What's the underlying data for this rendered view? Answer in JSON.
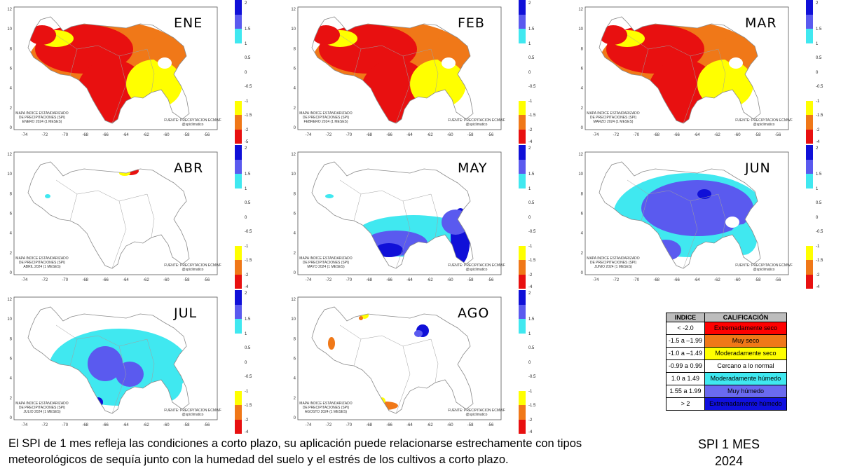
{
  "x_ticks": [
    "-74",
    "-72",
    "-70",
    "-68",
    "-66",
    "-64",
    "-62",
    "-60",
    "-58",
    "-56"
  ],
  "y_ticks": [
    "12",
    "10",
    "8",
    "6",
    "4",
    "2",
    "0"
  ],
  "panels": [
    {
      "month": "ENE",
      "title": [
        "MAPA INDICE ESTANDARIZADO",
        "DE PRECIPITACIONES (SPI)",
        "ENERO 2024 (1 MESES)"
      ],
      "source": [
        "FUENTE: PRECIPITACION ECMWF",
        "@spiclimatico"
      ],
      "cbar_ticks": [
        "2",
        "1.5",
        "1",
        "0.5",
        "0",
        "-0.5",
        "-1",
        "-1.5",
        "-2",
        "-5"
      ],
      "palette": "dry"
    },
    {
      "month": "FEB",
      "title": [
        "MAPA INDICE ESTANDARIZADO",
        "DE PRECIPITACIONES (SPI)",
        "FEBRERO 2024 (1 MESES)"
      ],
      "source": [
        "FUENTE: PRECIPITACION ECMWF",
        "@spiclimatico"
      ],
      "cbar_ticks": [
        "2",
        "1.5",
        "1",
        "0.5",
        "0",
        "-0.5",
        "-1",
        "-1.5",
        "-2",
        "-4"
      ],
      "palette": "dry"
    },
    {
      "month": "MAR",
      "title": [
        "MAPA INDICE ESTANDARIZADO",
        "DE PRECIPITACIONES (SPI)",
        "MARZO 2024 (1 MESES)"
      ],
      "source": [
        "FUENTE: PRECIPITACION ECMWF",
        "@spiclimatico"
      ],
      "cbar_ticks": [
        "2",
        "1.5",
        "1",
        "0.5",
        "0",
        "-0.5",
        "-1",
        "-1.5",
        "-2",
        "-4"
      ],
      "palette": "dry"
    },
    {
      "month": "ABR",
      "title": [
        "MAPA INDICE ESTANDARIZADO",
        "DE PRECIPITACIONES (SPI)",
        "ABRIL 2024 (1 MESES)"
      ],
      "source": [
        "FUENTE: PRECIPITACION ECMWF",
        "@spiclimatico"
      ],
      "cbar_ticks": [
        "2",
        "1.5",
        "1",
        "0.5",
        "0",
        "-0.5",
        "-1",
        "-1.5",
        "-2",
        "-4"
      ],
      "palette": "normal"
    },
    {
      "month": "MAY",
      "title": [
        "MAPA INDICE ESTANDARIZADO",
        "DE PRECIPITACIONES (SPI)",
        "MAYO 2024 (1 MESES)"
      ],
      "source": [
        "FUENTE: PRECIPITACION ECMWF",
        "@spiclimatico"
      ],
      "cbar_ticks": [
        "2",
        "1.5",
        "1",
        "0.5",
        "0",
        "-0.5",
        "-1",
        "-1.5",
        "-2",
        "-4"
      ],
      "palette": "wet-south"
    },
    {
      "month": "JUN",
      "title": [
        "MAPA INDICE ESTANDARIZADO",
        "DE PRECIPITACIONES (SPI)",
        "JUNIO 2024 (1 MESES)"
      ],
      "source": [
        "FUENTE: PRECIPITACION ECMWF",
        "@spiclimatico"
      ],
      "cbar_ticks": [
        "2",
        "1.5",
        "1",
        "0.5",
        "0",
        "-0.5",
        "-1",
        "-1.5",
        "-2",
        "-4"
      ],
      "palette": "wet"
    },
    {
      "month": "JUL",
      "title": [
        "MAPA INDICE ESTANDARIZADO",
        "DE PRECIPITACIONES (SPI)",
        "JULIO 2024 (1 MESES)"
      ],
      "source": [
        "FUENTE: PRECIPITACION ECMWF",
        "@spiclimatico"
      ],
      "cbar_ticks": [
        "2",
        "1.5",
        "1",
        "0.5",
        "0",
        "-0.5",
        "-1",
        "-1.5",
        "-2",
        "-4"
      ],
      "palette": "wet-light"
    },
    {
      "month": "AGO",
      "title": [
        "MAPA INDICE ESTANDARIZADO",
        "DE PRECIPITACIONES (SPI)",
        "AGOSTO 2024 (1 MESES)"
      ],
      "source": [
        "FUENTE: PRECIPITACION ECMWF",
        "@spiclimatico"
      ],
      "cbar_ticks": [
        "2",
        "1.5",
        "1",
        "0.5",
        "0",
        "-0.5",
        "-1",
        "-1.5",
        "-2",
        "-4"
      ],
      "palette": "normal-spots"
    }
  ],
  "colors": {
    "extreme_wet": "#1010d8",
    "very_wet": "#5a5aef",
    "mod_wet": "#40e8f0",
    "normal": "#ffffff",
    "mod_dry": "#ffff00",
    "very_dry": "#f07818",
    "extreme_dry": "#e81010"
  },
  "legend": {
    "header_index": "INDICE",
    "header_class": "CALIFICACIÓN",
    "rows": [
      {
        "index": "< -2.0",
        "label": "Extremadamente seco",
        "color": "#ff0000"
      },
      {
        "index": "-1.5 a –1.99",
        "label": "Muy seco",
        "color": "#f07818"
      },
      {
        "index": "-1.0 a –1.49",
        "label": "Moderadamente seco",
        "color": "#ffff00"
      },
      {
        "index": "-0.99 a 0.99",
        "label": "Cercano a lo normal",
        "color": "#ffffff"
      },
      {
        "index": "1.0 a 1.49",
        "label": "Moderadamente húmedo",
        "color": "#40e8f0"
      },
      {
        "index": "1.55 a 1.99",
        "label": "Muy húmedo",
        "color": "#6a6af0"
      },
      {
        "index": "> 2",
        "label": "Extremadamente húmedo",
        "color": "#1010e0"
      }
    ]
  },
  "caption": "El SPI de 1 mes refleja las condiciones a corto plazo, su aplicación puede relacionarse estrechamente con tipos meteorológicos de sequía junto con la humedad del suelo y el estrés de los cultivos a corto plazo.",
  "spi_title_line1": "SPI 1 MES",
  "spi_title_line2": "2024"
}
